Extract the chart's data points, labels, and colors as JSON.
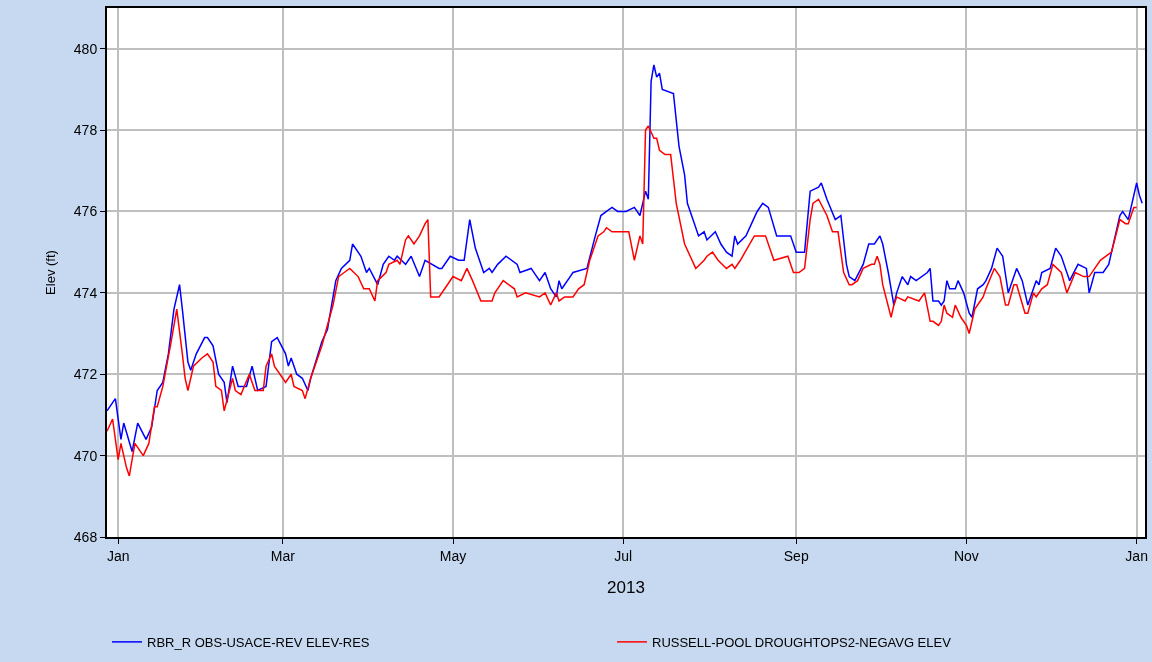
{
  "chart_data": {
    "type": "line",
    "ylabel": "Elev (ft)",
    "xlabel": "2013",
    "xlim": [
      "2012-12-28",
      "2014-01-04"
    ],
    "xticks": [
      {
        "value": "2013-01-01",
        "label": "Jan"
      },
      {
        "value": "2013-03-01",
        "label": "Mar"
      },
      {
        "value": "2013-05-01",
        "label": "May"
      },
      {
        "value": "2013-07-01",
        "label": "Jul"
      },
      {
        "value": "2013-09-01",
        "label": "Sep"
      },
      {
        "value": "2013-11-01",
        "label": "Nov"
      },
      {
        "value": "2014-01-01",
        "label": "Jan"
      }
    ],
    "ylim": [
      468,
      481
    ],
    "yticks": [
      468,
      470,
      472,
      474,
      476,
      478,
      480
    ],
    "grid": true,
    "legend": "bottom",
    "marker": "none",
    "line_style": "solid",
    "series": [
      {
        "name": "RBR_R OBS-USACE-REV ELEV-RES",
        "color": "#0000ff",
        "x": [
          "2012-12-28",
          "2012-12-31",
          "2013-01-02",
          "2013-01-03",
          "2013-01-06",
          "2013-01-08",
          "2013-01-11",
          "2013-01-13",
          "2013-01-15",
          "2013-01-17",
          "2013-01-19",
          "2013-01-21",
          "2013-01-23",
          "2013-01-24",
          "2013-01-26",
          "2013-01-27",
          "2013-01-29",
          "2013-02-01",
          "2013-02-02",
          "2013-02-04",
          "2013-02-06",
          "2013-02-08",
          "2013-02-09",
          "2013-02-11",
          "2013-02-13",
          "2013-02-16",
          "2013-02-18",
          "2013-02-20",
          "2013-02-23",
          "2013-02-25",
          "2013-02-27",
          "2013-03-02",
          "2013-03-03",
          "2013-03-04",
          "2013-03-06",
          "2013-03-08",
          "2013-03-10",
          "2013-03-11",
          "2013-03-15",
          "2013-03-17",
          "2013-03-20",
          "2013-03-22",
          "2013-03-25",
          "2013-03-26",
          "2013-03-29",
          "2013-03-31",
          "2013-04-01",
          "2013-04-04",
          "2013-04-06",
          "2013-04-08",
          "2013-04-10",
          "2013-04-11",
          "2013-04-14",
          "2013-04-16",
          "2013-04-19",
          "2013-04-21",
          "2013-04-26",
          "2013-04-27",
          "2013-04-30",
          "2013-05-03",
          "2013-05-05",
          "2013-05-07",
          "2013-05-09",
          "2013-05-12",
          "2013-05-14",
          "2013-05-15",
          "2013-05-17",
          "2013-05-20",
          "2013-05-24",
          "2013-05-25",
          "2013-05-29",
          "2013-06-01",
          "2013-06-03",
          "2013-06-05",
          "2013-06-07",
          "2013-06-08",
          "2013-06-09",
          "2013-06-12",
          "2013-06-13",
          "2013-06-18",
          "2013-06-21",
          "2013-06-23",
          "2013-06-25",
          "2013-06-27",
          "2013-06-29",
          "2013-07-02",
          "2013-07-05",
          "2013-07-07",
          "2013-07-09",
          "2013-07-10",
          "2013-07-11",
          "2013-07-12",
          "2013-07-13",
          "2013-07-14",
          "2013-07-15",
          "2013-07-19",
          "2013-07-21",
          "2013-07-23",
          "2013-07-24",
          "2013-07-26",
          "2013-07-28",
          "2013-07-30",
          "2013-07-31",
          "2013-08-03",
          "2013-08-05",
          "2013-08-07",
          "2013-08-09",
          "2013-08-10",
          "2013-08-11",
          "2013-08-14",
          "2013-08-16",
          "2013-08-18",
          "2013-08-20",
          "2013-08-22",
          "2013-08-25",
          "2013-08-28",
          "2013-08-30",
          "2013-09-01",
          "2013-09-04",
          "2013-09-06",
          "2013-09-09",
          "2013-09-10",
          "2013-09-12",
          "2013-09-15",
          "2013-09-17",
          "2013-09-19",
          "2013-09-20",
          "2013-09-22",
          "2013-09-25",
          "2013-09-27",
          "2013-09-29",
          "2013-10-01",
          "2013-10-02",
          "2013-10-04",
          "2013-10-06",
          "2013-10-07",
          "2013-10-09",
          "2013-10-11",
          "2013-10-12",
          "2013-10-14",
          "2013-10-18",
          "2013-10-19",
          "2013-10-20",
          "2013-10-22",
          "2013-10-23",
          "2013-10-24",
          "2013-10-25",
          "2013-10-26",
          "2013-10-28",
          "2013-10-29",
          "2013-10-31",
          "2013-11-02",
          "2013-11-03",
          "2013-11-05",
          "2013-11-07",
          "2013-11-08",
          "2013-11-10",
          "2013-11-12",
          "2013-11-14",
          "2013-11-16",
          "2013-11-19",
          "2013-11-21",
          "2013-11-23",
          "2013-11-26",
          "2013-11-27",
          "2013-11-28",
          "2013-12-01",
          "2013-12-03",
          "2013-12-05",
          "2013-12-08",
          "2013-12-11",
          "2013-12-14",
          "2013-12-15",
          "2013-12-17",
          "2013-12-20",
          "2013-12-22",
          "2013-12-26",
          "2013-12-27",
          "2013-12-29",
          "2014-01-01",
          "2014-01-02",
          "2014-01-03"
        ],
        "values": [
          471.1,
          471.4,
          470.4,
          470.8,
          470.1,
          470.8,
          470.4,
          470.7,
          471.6,
          471.8,
          472.5,
          473.6,
          474.2,
          473.6,
          472.3,
          472.1,
          472.5,
          472.9,
          472.9,
          472.7,
          472.0,
          471.8,
          471.3,
          472.2,
          471.7,
          471.7,
          472.2,
          471.6,
          471.7,
          472.8,
          472.9,
          472.5,
          472.2,
          472.4,
          472.0,
          471.9,
          471.6,
          471.9,
          472.8,
          473.1,
          474.3,
          474.6,
          474.8,
          475.2,
          474.9,
          474.5,
          474.6,
          474.2,
          474.7,
          474.9,
          474.8,
          474.9,
          474.7,
          474.9,
          474.4,
          474.8,
          474.6,
          474.6,
          474.9,
          474.8,
          474.8,
          475.8,
          475.1,
          474.5,
          474.6,
          474.5,
          474.7,
          474.9,
          474.7,
          474.5,
          474.6,
          474.3,
          474.5,
          474.1,
          473.9,
          474.3,
          474.1,
          474.4,
          474.5,
          474.6,
          475.4,
          475.9,
          476.0,
          476.1,
          476.0,
          476.0,
          476.1,
          475.9,
          476.5,
          476.3,
          479.2,
          479.6,
          479.3,
          479.4,
          479.0,
          478.9,
          477.6,
          476.9,
          476.2,
          475.8,
          475.4,
          475.5,
          475.3,
          475.5,
          475.2,
          475.0,
          474.9,
          475.4,
          475.2,
          475.4,
          475.7,
          476.0,
          476.2,
          476.1,
          475.4,
          475.4,
          475.4,
          475.0,
          475.0,
          476.5,
          476.6,
          476.7,
          476.3,
          475.8,
          475.9,
          474.7,
          474.4,
          474.3,
          474.7,
          475.2,
          475.2,
          475.4,
          475.2,
          474.5,
          473.7,
          474.0,
          474.4,
          474.2,
          474.4,
          474.3,
          474.5,
          474.6,
          473.8,
          473.8,
          473.7,
          473.8,
          474.3,
          474.1,
          474.1,
          474.3,
          474.0,
          473.5,
          473.4,
          474.1,
          474.2,
          474.3,
          474.6,
          475.1,
          474.9,
          474.0,
          474.6,
          474.3,
          473.7,
          474.3,
          474.2,
          474.5,
          474.6,
          475.1,
          474.9,
          474.3,
          474.7,
          474.6,
          474.0,
          474.5,
          474.5,
          474.7,
          475.9,
          476.0,
          475.8,
          476.7,
          476.4,
          476.2
        ]
      },
      {
        "name": "RUSSELL-POOL DROUGHTOPS2-NEGAVG ELEV",
        "color": "#ff0000",
        "x": [
          "2012-12-28",
          "2012-12-30",
          "2013-01-01",
          "2013-01-02",
          "2013-01-04",
          "2013-01-05",
          "2013-01-07",
          "2013-01-10",
          "2013-01-12",
          "2013-01-14",
          "2013-01-15",
          "2013-01-17",
          "2013-01-20",
          "2013-01-22",
          "2013-01-24",
          "2013-01-25",
          "2013-01-26",
          "2013-01-28",
          "2013-01-31",
          "2013-02-02",
          "2013-02-04",
          "2013-02-05",
          "2013-02-07",
          "2013-02-08",
          "2013-02-11",
          "2013-02-12",
          "2013-02-14",
          "2013-02-17",
          "2013-02-19",
          "2013-02-22",
          "2013-02-23",
          "2013-02-25",
          "2013-02-26",
          "2013-03-02",
          "2013-03-04",
          "2013-03-05",
          "2013-03-08",
          "2013-03-09",
          "2013-03-11",
          "2013-03-15",
          "2013-03-19",
          "2013-03-21",
          "2013-03-23",
          "2013-03-25",
          "2013-03-28",
          "2013-03-30",
          "2013-04-01",
          "2013-04-03",
          "2013-04-04",
          "2013-04-07",
          "2013-04-08",
          "2013-04-11",
          "2013-04-12",
          "2013-04-14",
          "2013-04-15",
          "2013-04-17",
          "2013-04-19",
          "2013-04-21",
          "2013-04-22",
          "2013-04-23",
          "2013-04-26",
          "2013-04-29",
          "2013-05-01",
          "2013-05-04",
          "2013-05-06",
          "2013-05-08",
          "2013-05-11",
          "2013-05-13",
          "2013-05-15",
          "2013-05-16",
          "2013-05-19",
          "2013-05-23",
          "2013-05-24",
          "2013-05-27",
          "2013-06-01",
          "2013-06-03",
          "2013-06-05",
          "2013-06-07",
          "2013-06-08",
          "2013-06-10",
          "2013-06-13",
          "2013-06-15",
          "2013-06-17",
          "2013-06-19",
          "2013-06-22",
          "2013-06-24",
          "2013-06-25",
          "2013-06-27",
          "2013-06-30",
          "2013-07-03",
          "2013-07-05",
          "2013-07-07",
          "2013-07-08",
          "2013-07-09",
          "2013-07-10",
          "2013-07-12",
          "2013-07-13",
          "2013-07-14",
          "2013-07-16",
          "2013-07-18",
          "2013-07-20",
          "2013-07-23",
          "2013-07-25",
          "2013-07-27",
          "2013-07-30",
          "2013-07-31",
          "2013-08-02",
          "2013-08-04",
          "2013-08-07",
          "2013-08-09",
          "2013-08-10",
          "2013-08-12",
          "2013-08-17",
          "2013-08-19",
          "2013-08-21",
          "2013-08-24",
          "2013-08-29",
          "2013-08-31",
          "2013-09-02",
          "2013-09-04",
          "2013-09-06",
          "2013-09-07",
          "2013-09-09",
          "2013-09-12",
          "2013-09-14",
          "2013-09-16",
          "2013-09-18",
          "2013-09-20",
          "2013-09-21",
          "2013-09-23",
          "2013-09-25",
          "2013-09-28",
          "2013-09-29",
          "2013-09-30",
          "2013-10-01",
          "2013-10-02",
          "2013-10-05",
          "2013-10-06",
          "2013-10-07",
          "2013-10-10",
          "2013-10-11",
          "2013-10-15",
          "2013-10-17",
          "2013-10-19",
          "2013-10-20",
          "2013-10-22",
          "2013-10-23",
          "2013-10-24",
          "2013-10-25",
          "2013-10-27",
          "2013-10-28",
          "2013-10-30",
          "2013-11-01",
          "2013-11-02",
          "2013-11-04",
          "2013-11-06",
          "2013-11-07",
          "2013-11-08",
          "2013-11-11",
          "2013-11-13",
          "2013-11-15",
          "2013-11-16",
          "2013-11-18",
          "2013-11-19",
          "2013-11-22",
          "2013-11-23",
          "2013-11-25",
          "2013-11-26",
          "2013-11-28",
          "2013-11-30",
          "2013-12-02",
          "2013-12-05",
          "2013-12-07",
          "2013-12-10",
          "2013-12-13",
          "2013-12-15",
          "2013-12-17",
          "2013-12-19",
          "2013-12-21",
          "2013-12-23",
          "2013-12-26",
          "2013-12-28",
          "2013-12-29",
          "2013-12-31",
          "2014-01-01"
        ],
        "values": [
          470.6,
          470.9,
          469.9,
          470.3,
          469.7,
          469.5,
          470.3,
          470.0,
          470.3,
          471.2,
          471.2,
          471.7,
          472.8,
          473.6,
          472.5,
          471.9,
          471.6,
          472.2,
          472.4,
          472.5,
          472.3,
          471.7,
          471.6,
          471.1,
          471.9,
          471.6,
          471.5,
          472.0,
          471.6,
          471.6,
          472.2,
          472.5,
          472.2,
          471.8,
          472.0,
          471.7,
          471.6,
          471.4,
          471.9,
          472.7,
          473.7,
          474.4,
          474.5,
          474.6,
          474.4,
          474.1,
          474.1,
          473.8,
          474.3,
          474.5,
          474.7,
          474.8,
          474.7,
          475.3,
          475.4,
          475.2,
          475.4,
          475.7,
          475.8,
          473.9,
          473.9,
          474.2,
          474.4,
          474.3,
          474.6,
          474.3,
          473.8,
          473.8,
          473.8,
          474.0,
          474.3,
          474.1,
          473.9,
          474.0,
          473.9,
          474.0,
          473.7,
          474.0,
          473.8,
          473.9,
          473.9,
          474.1,
          474.2,
          474.8,
          475.4,
          475.5,
          475.6,
          475.5,
          475.5,
          475.5,
          474.8,
          475.4,
          475.2,
          478.0,
          478.1,
          477.8,
          477.8,
          477.5,
          477.4,
          477.4,
          476.2,
          475.2,
          474.9,
          474.6,
          474.8,
          474.9,
          475.0,
          474.8,
          474.6,
          474.7,
          474.6,
          474.8,
          475.4,
          475.4,
          475.4,
          474.8,
          474.9,
          474.5,
          474.5,
          474.6,
          475.8,
          476.2,
          476.3,
          475.9,
          475.5,
          475.5,
          474.5,
          474.2,
          474.2,
          474.3,
          474.6,
          474.7,
          474.7,
          474.9,
          474.7,
          474.2,
          473.4,
          473.7,
          473.9,
          473.8,
          473.9,
          473.8,
          474.0,
          473.3,
          473.3,
          473.2,
          473.3,
          473.7,
          473.5,
          473.4,
          473.7,
          473.4,
          473.2,
          473.0,
          473.6,
          473.8,
          473.9,
          474.1,
          474.6,
          474.4,
          473.7,
          473.7,
          474.2,
          474.2,
          473.5,
          473.5,
          474.0,
          473.9,
          474.1,
          474.2,
          474.7,
          474.5,
          474.0,
          474.5,
          474.4,
          474.4,
          474.6,
          474.8,
          474.9,
          475.0,
          475.8,
          475.7,
          475.7,
          476.1,
          476.1
        ]
      }
    ]
  }
}
